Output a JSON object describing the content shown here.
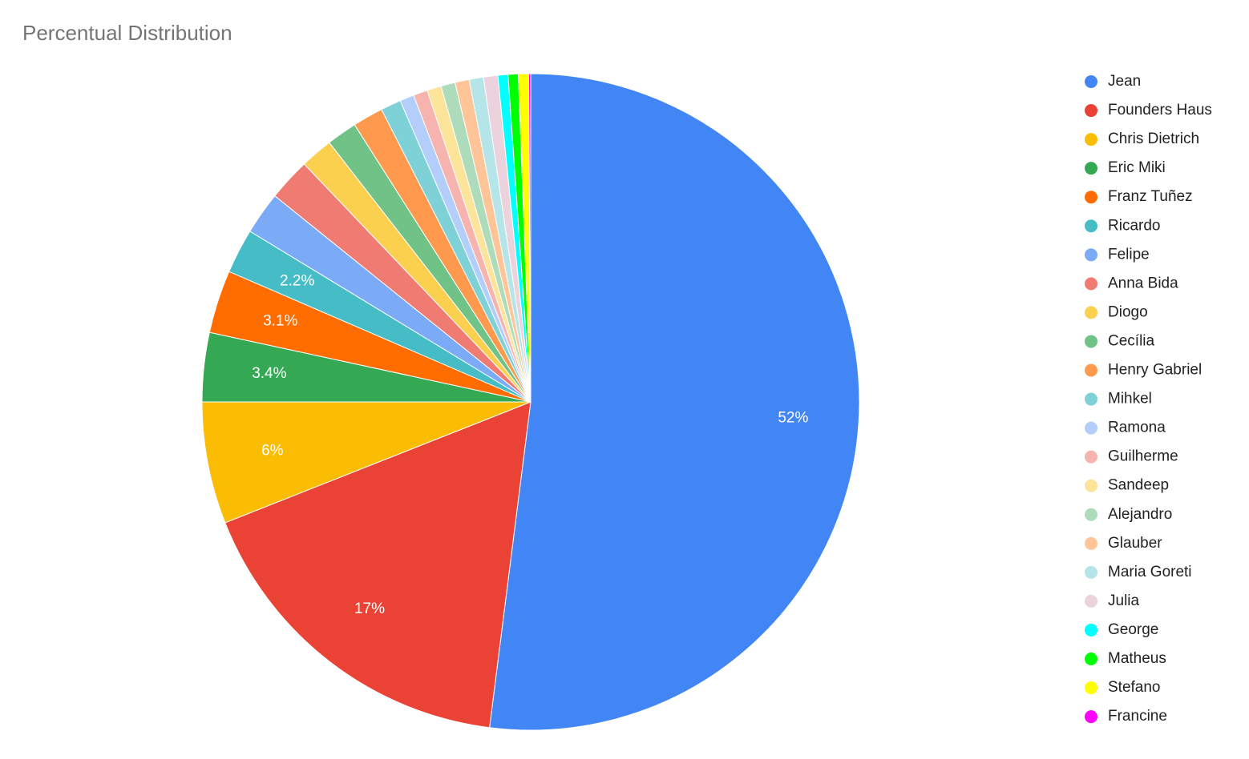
{
  "chart_data": {
    "type": "pie",
    "title": "Percentual Distribution",
    "categories": [
      "Jean",
      "Founders Haus",
      "Chris Dietrich",
      "Eric Miki",
      "Franz Tuñez",
      "Ricardo",
      "Felipe",
      "Anna Bida",
      "Diogo",
      "Cecília",
      "Henry Gabriel",
      "Mihkel",
      "Ramona",
      "Guilherme",
      "Sandeep",
      "Alejandro",
      "Glauber",
      "Maria Goreti",
      "Julia",
      "George",
      "Matheus",
      "Stefano",
      "Francine"
    ],
    "values": [
      52,
      17,
      6,
      3.4,
      3.1,
      2.2,
      2.1,
      2.1,
      1.6,
      1.5,
      1.5,
      1.0,
      0.7,
      0.7,
      0.7,
      0.7,
      0.7,
      0.7,
      0.7,
      0.5,
      0.5,
      0.5,
      0.1
    ],
    "value_labels": [
      "52%",
      "17%",
      "6%",
      "3.4%",
      "3.1%",
      "2.2%",
      null,
      null,
      null,
      null,
      null,
      null,
      null,
      null,
      null,
      null,
      null,
      null,
      null,
      null,
      null,
      null,
      null
    ],
    "colors": [
      "#4285f4",
      "#ea4335",
      "#fbbc04",
      "#34a853",
      "#ff6d01",
      "#46bdc6",
      "#7baaf7",
      "#f07b72",
      "#fcd04f",
      "#71c287",
      "#ff994d",
      "#7ed1d7",
      "#b3cefb",
      "#f7b4ae",
      "#fde49b",
      "#aedcba",
      "#ffc599",
      "#b5e5e8",
      "#ecd2dc",
      "#00ffff",
      "#00ff00",
      "#ffff00",
      "#ff00ff"
    ],
    "legend": "right"
  }
}
